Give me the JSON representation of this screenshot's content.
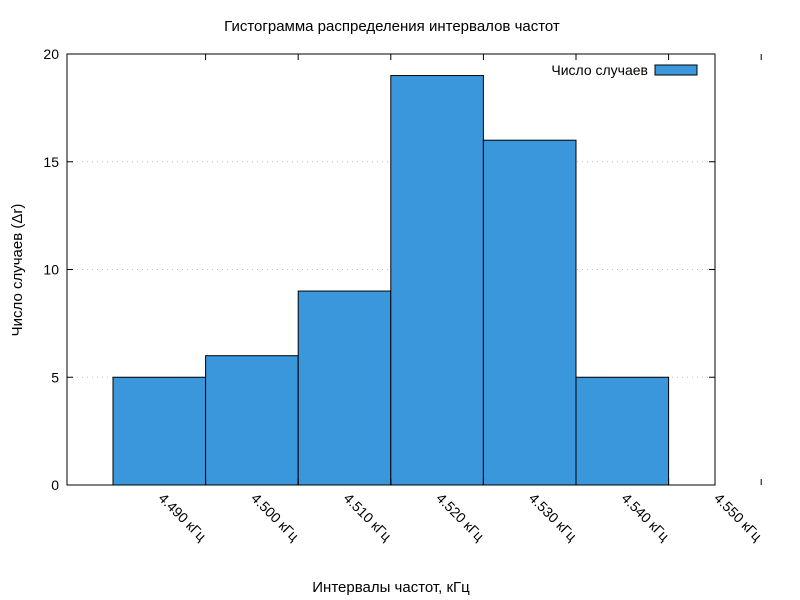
{
  "chart_data": {
    "type": "bar",
    "title": "Гистограмма распределения интервалов частот",
    "xlabel": "Интервалы частот, кГц",
    "ylabel": "Число случаев (Δr)",
    "categories": [
      "4.490 кГц",
      "4.500 кГц",
      "4.510 кГц",
      "4.520 кГц",
      "4.530 кГц",
      "4.540 кГц"
    ],
    "x_tick_labels": [
      "4.490 кГц",
      "4.500 кГц",
      "4.510 кГц",
      "4.520 кГц",
      "4.530 кГц",
      "4.540 кГц",
      "4.550 кГц"
    ],
    "series": [
      {
        "name": "Число случаев",
        "values": [
          5,
          6,
          9,
          19,
          16,
          5
        ],
        "color": "#3a97dc"
      }
    ],
    "ylim": [
      0,
      20
    ],
    "y_ticks": [
      0,
      5,
      10,
      15,
      20
    ],
    "grid": true,
    "legend_position": "top-right"
  }
}
